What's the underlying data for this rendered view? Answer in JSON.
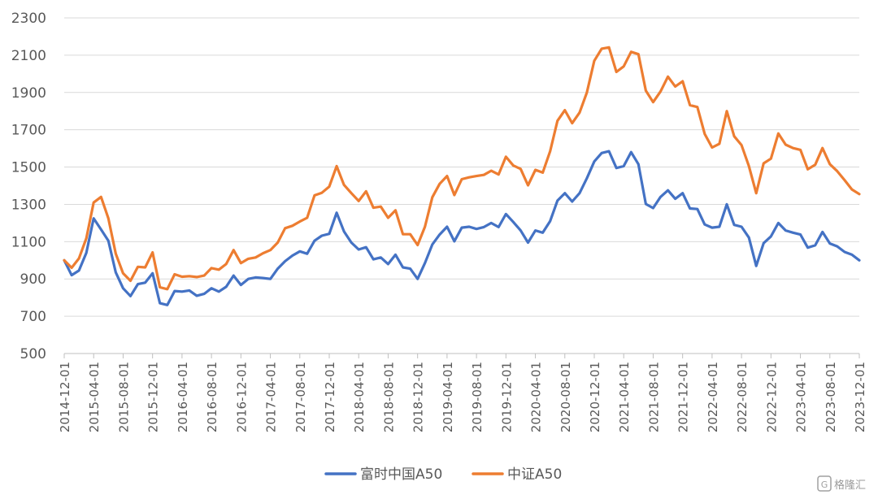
{
  "chart_data": {
    "type": "line",
    "title": "",
    "xlabel": "",
    "ylabel": "",
    "ylim": [
      500,
      2300
    ],
    "yticks": [
      "500",
      "700",
      "900",
      "1100",
      "1300",
      "1500",
      "1700",
      "1900",
      "2100",
      "2300"
    ],
    "grid": "horizontal",
    "legend_position": "bottom",
    "x_tick_labels": [
      "2014-12-01",
      "2015-04-01",
      "2015-08-01",
      "2015-12-01",
      "2016-04-01",
      "2016-08-01",
      "2016-12-01",
      "2017-04-01",
      "2017-08-01",
      "2017-12-01",
      "2018-04-01",
      "2018-08-01",
      "2018-12-01",
      "2019-04-01",
      "2019-08-01",
      "2019-12-01",
      "2020-04-01",
      "2020-08-01",
      "2020-12-01",
      "2021-04-01",
      "2021-08-01",
      "2021-12-01",
      "2022-04-01",
      "2022-08-01",
      "2022-12-01",
      "2023-04-01",
      "2023-08-01",
      "2023-12-01"
    ],
    "series": [
      {
        "name": "富时中国A50",
        "color": "#4472C4",
        "values": [
          1000,
          920,
          945,
          1040,
          1225,
          1165,
          1105,
          935,
          850,
          808,
          872,
          880,
          930,
          770,
          760,
          835,
          832,
          838,
          810,
          820,
          850,
          832,
          858,
          918,
          868,
          900,
          908,
          905,
          900,
          955,
          995,
          1025,
          1048,
          1035,
          1105,
          1132,
          1142,
          1255,
          1155,
          1095,
          1058,
          1070,
          1005,
          1015,
          980,
          1030,
          962,
          955,
          900,
          985,
          1085,
          1138,
          1180,
          1102,
          1175,
          1180,
          1168,
          1178,
          1200,
          1178,
          1248,
          1205,
          1160,
          1095,
          1160,
          1148,
          1210,
          1320,
          1360,
          1315,
          1360,
          1440,
          1530,
          1575,
          1585,
          1495,
          1505,
          1580,
          1515,
          1302,
          1280,
          1340,
          1375,
          1330,
          1360,
          1278,
          1275,
          1192,
          1175,
          1180,
          1300,
          1190,
          1180,
          1122,
          970,
          1092,
          1128,
          1200,
          1160,
          1148,
          1138,
          1068,
          1080,
          1152,
          1090,
          1075,
          1045,
          1030,
          1000
        ]
      },
      {
        "name": "中证A50",
        "color": "#ED7D31",
        "values": [
          1000,
          960,
          1010,
          1118,
          1310,
          1340,
          1225,
          1035,
          930,
          890,
          965,
          962,
          1042,
          855,
          845,
          925,
          912,
          915,
          910,
          918,
          958,
          950,
          980,
          1055,
          985,
          1008,
          1015,
          1038,
          1055,
          1095,
          1172,
          1185,
          1208,
          1228,
          1348,
          1362,
          1395,
          1505,
          1405,
          1360,
          1318,
          1370,
          1282,
          1288,
          1228,
          1268,
          1140,
          1140,
          1082,
          1180,
          1338,
          1410,
          1452,
          1350,
          1435,
          1445,
          1452,
          1458,
          1480,
          1460,
          1555,
          1508,
          1490,
          1402,
          1485,
          1470,
          1585,
          1748,
          1805,
          1735,
          1792,
          1900,
          2070,
          2135,
          2142,
          2010,
          2040,
          2118,
          2105,
          1910,
          1848,
          1905,
          1985,
          1932,
          1960,
          1832,
          1822,
          1678,
          1605,
          1625,
          1800,
          1665,
          1618,
          1505,
          1360,
          1520,
          1545,
          1680,
          1620,
          1602,
          1592,
          1488,
          1512,
          1602,
          1515,
          1478,
          1430,
          1380,
          1355
        ]
      }
    ]
  },
  "watermark": {
    "text": "格隆汇",
    "icon": "g-logo-icon"
  }
}
